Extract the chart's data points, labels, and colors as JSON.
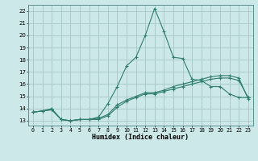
{
  "xlabel": "Humidex (Indice chaleur)",
  "x": [
    0,
    1,
    2,
    3,
    4,
    5,
    6,
    7,
    8,
    9,
    10,
    11,
    12,
    13,
    14,
    15,
    16,
    17,
    18,
    19,
    20,
    21,
    22,
    23
  ],
  "line1": [
    13.7,
    13.8,
    13.9,
    13.1,
    13.0,
    13.1,
    13.1,
    13.2,
    13.5,
    14.3,
    14.7,
    15.0,
    15.3,
    15.3,
    15.5,
    15.8,
    16.0,
    16.2,
    16.4,
    16.6,
    16.7,
    16.7,
    16.5,
    14.8
  ],
  "line2": [
    13.7,
    13.8,
    14.0,
    13.1,
    13.0,
    13.1,
    13.1,
    13.3,
    14.4,
    15.8,
    17.5,
    18.2,
    20.0,
    22.2,
    20.3,
    18.2,
    18.1,
    16.4,
    16.3,
    15.8,
    15.8,
    15.2,
    14.9,
    14.9
  ],
  "line3": [
    13.7,
    13.8,
    13.9,
    13.1,
    13.0,
    13.1,
    13.1,
    13.1,
    13.4,
    14.1,
    14.6,
    14.9,
    15.2,
    15.2,
    15.4,
    15.6,
    15.8,
    16.0,
    16.2,
    16.4,
    16.5,
    16.5,
    16.3,
    14.9
  ],
  "line_color": "#2e7d6e",
  "bg_color": "#cce8e8",
  "grid_color": "#aacaca",
  "ylim": [
    12.6,
    22.5
  ],
  "yticks": [
    13,
    14,
    15,
    16,
    17,
    18,
    19,
    20,
    21,
    22
  ],
  "xlim": [
    -0.5,
    23.5
  ]
}
